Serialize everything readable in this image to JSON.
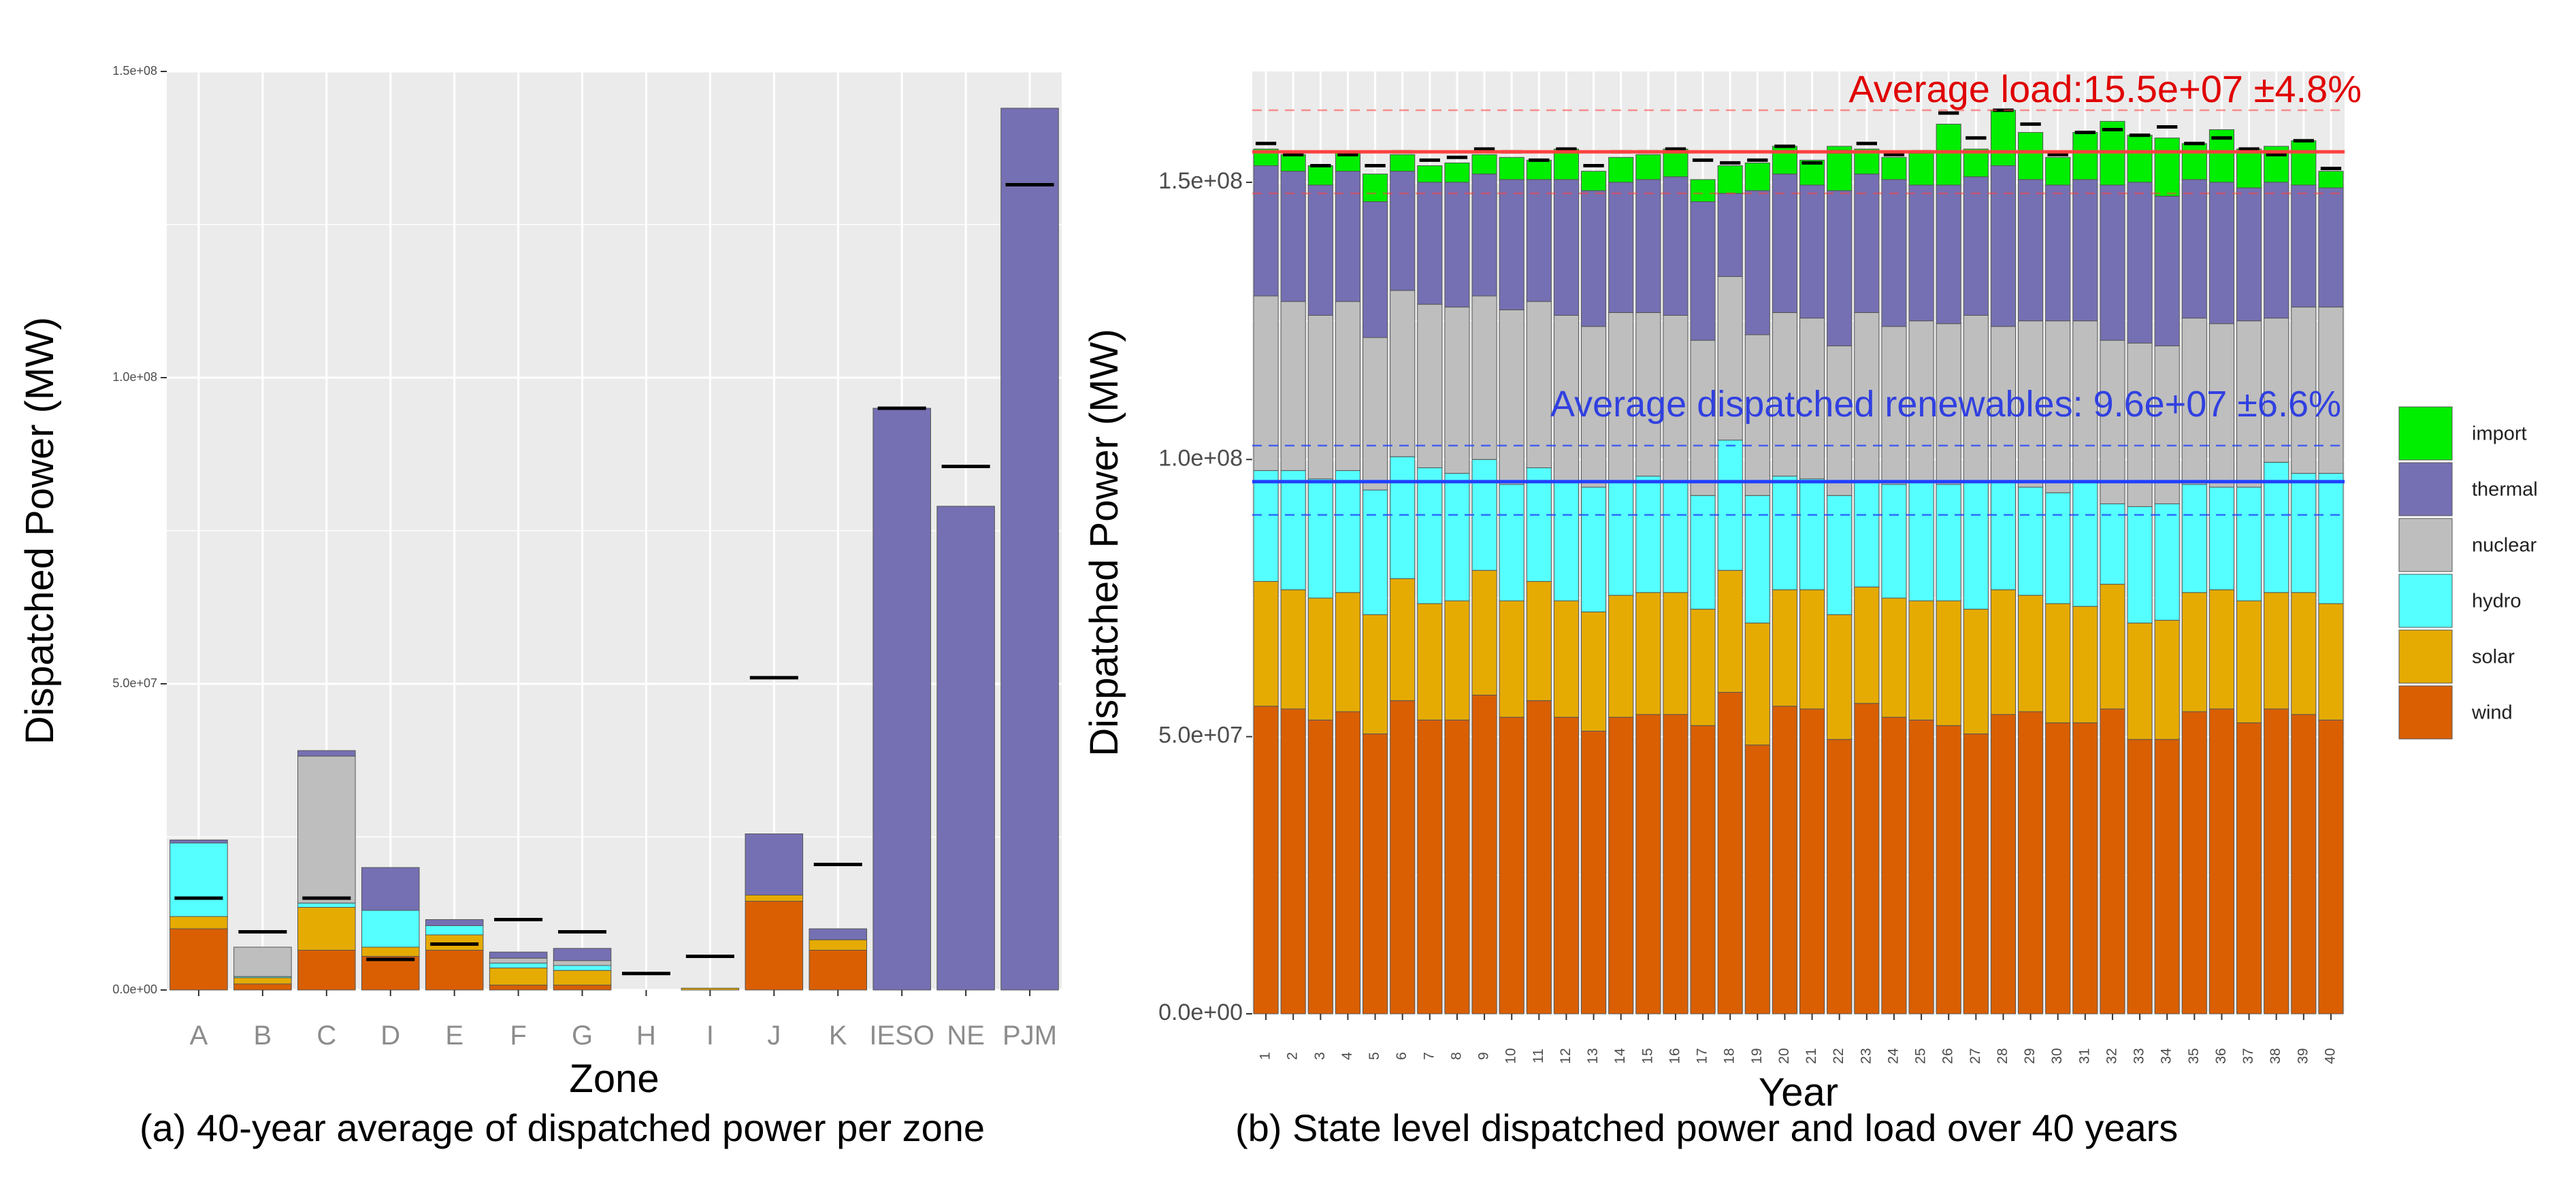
{
  "colors": {
    "wind": "#D95F02",
    "solar": "#E6AB02",
    "hydro": "#55FFFF",
    "nuclear": "#BEBEBE",
    "thermal": "#7570B3",
    "import": "#00EE00",
    "panel_bg": "#EBEBEB",
    "grid": "#FFFFFF",
    "load_line": "#FF4040",
    "renew_line": "#2040FF",
    "renew_text": "#3040E0",
    "load_text": "#E00000"
  },
  "chart_data": [
    {
      "type": "bar",
      "stacked": true,
      "caption": "(a) 40-year average of dispatched power per zone",
      "xlabel": "Zone",
      "ylabel": "Dispatched Power (MW)",
      "ylim": [
        0,
        150000000
      ],
      "yticks": [
        0,
        50000000,
        100000000,
        150000000
      ],
      "ytick_labels": [
        "0.0e+00",
        "5.0e+07",
        "1.0e+08",
        "1.5e+08"
      ],
      "grid": true,
      "categories": [
        "A",
        "B",
        "C",
        "D",
        "E",
        "F",
        "G",
        "H",
        "I",
        "J",
        "K",
        "IESO",
        "NE",
        "PJM"
      ],
      "series": [
        {
          "name": "wind",
          "values": [
            10000000,
            1000000,
            6500000,
            5500000,
            6500000,
            800000,
            800000,
            0,
            0,
            14500000,
            6500000,
            0,
            0,
            0
          ]
        },
        {
          "name": "solar",
          "values": [
            2000000,
            1000000,
            7000000,
            1500000,
            2500000,
            2800000,
            2400000,
            0,
            300000,
            1000000,
            1700000,
            0,
            0,
            0
          ]
        },
        {
          "name": "hydro",
          "values": [
            12000000,
            200000,
            700000,
            6000000,
            1500000,
            800000,
            800000,
            0,
            0,
            0,
            0,
            0,
            0,
            0
          ]
        },
        {
          "name": "nuclear",
          "values": [
            0,
            4800000,
            24000000,
            0,
            0,
            800000,
            800000,
            0,
            0,
            0,
            0,
            0,
            0,
            0
          ]
        },
        {
          "name": "thermal",
          "values": [
            500000,
            0,
            900000,
            7000000,
            1000000,
            1000000,
            2000000,
            0,
            0,
            10000000,
            1800000,
            95000000,
            79000000,
            144000000
          ]
        },
        {
          "name": "import",
          "values": [
            0,
            0,
            0,
            0,
            0,
            0,
            0,
            0,
            0,
            0,
            0,
            0,
            0,
            0
          ]
        }
      ],
      "load_marks": [
        15000000,
        9500000,
        15000000,
        5000000,
        7500000,
        11500000,
        9500000,
        2700000,
        5500000,
        51000000,
        20500000,
        95000000,
        85500000,
        131500000
      ]
    },
    {
      "type": "bar",
      "stacked": true,
      "caption": "(b) State level dispatched power and load over 40 years",
      "xlabel": "Year",
      "ylabel": "Dispatched Power (MW)",
      "ylim": [
        0,
        170000000
      ],
      "yticks": [
        0,
        50000000,
        100000000,
        150000000
      ],
      "ytick_labels": [
        "0.0e+00",
        "5.0e+07",
        "1.0e+08",
        "1.5e+08"
      ],
      "grid": true,
      "categories": [
        "1",
        "2",
        "3",
        "4",
        "5",
        "6",
        "7",
        "8",
        "9",
        "10",
        "11",
        "12",
        "13",
        "14",
        "15",
        "16",
        "17",
        "18",
        "19",
        "20",
        "21",
        "22",
        "23",
        "24",
        "25",
        "26",
        "27",
        "28",
        "29",
        "30",
        "31",
        "32",
        "33",
        "34",
        "35",
        "36",
        "37",
        "38",
        "39",
        "40"
      ],
      "series": [
        {
          "name": "wind",
          "values": [
            55500000,
            55000000,
            53000000,
            54500000,
            50500000,
            56500000,
            53000000,
            53000000,
            57500000,
            53500000,
            56500000,
            53500000,
            51000000,
            53500000,
            54000000,
            54000000,
            52000000,
            58000000,
            48500000,
            55500000,
            55000000,
            49500000,
            56000000,
            53500000,
            53000000,
            52000000,
            50500000,
            54000000,
            54500000,
            52500000,
            52500000,
            55000000,
            49500000,
            49500000,
            54500000,
            55000000,
            52500000,
            55000000,
            54000000,
            53000000
          ]
        },
        {
          "name": "solar",
          "values": [
            22500000,
            21500000,
            22000000,
            21500000,
            21500000,
            22000000,
            21000000,
            21500000,
            22500000,
            21000000,
            21500000,
            21000000,
            21500000,
            22000000,
            22000000,
            22000000,
            21000000,
            22000000,
            22000000,
            21000000,
            21500000,
            22500000,
            21000000,
            21500000,
            21500000,
            22500000,
            22500000,
            22500000,
            21000000,
            21500000,
            21000000,
            22500000,
            21000000,
            21500000,
            21500000,
            21500000,
            22000000,
            21000000,
            22000000,
            21000000
          ]
        },
        {
          "name": "hydro",
          "values": [
            20000000,
            21500000,
            21500000,
            22000000,
            22500000,
            22000000,
            24500000,
            23000000,
            20000000,
            21000000,
            20500000,
            21500000,
            22500000,
            20500000,
            21000000,
            20000000,
            20500000,
            23500000,
            23000000,
            20500000,
            20000000,
            21500000,
            19000000,
            20500000,
            21500000,
            21000000,
            23000000,
            19500000,
            19500000,
            20000000,
            22500000,
            14500000,
            21000000,
            21000000,
            19500000,
            18500000,
            20500000,
            23500000,
            21500000,
            23500000
          ]
        },
        {
          "name": "nuclear",
          "values": [
            31500000,
            30500000,
            29500000,
            30500000,
            27500000,
            30000000,
            29500000,
            30000000,
            29500000,
            31500000,
            30000000,
            30000000,
            29000000,
            30500000,
            29500000,
            30000000,
            28000000,
            29500000,
            29000000,
            29500000,
            29000000,
            27000000,
            30500000,
            28500000,
            29000000,
            29000000,
            30000000,
            28000000,
            30000000,
            31000000,
            29000000,
            29500000,
            29500000,
            28500000,
            30000000,
            29500000,
            30000000,
            26000000,
            30000000,
            30000000
          ]
        },
        {
          "name": "thermal",
          "values": [
            23500000,
            23500000,
            23500000,
            23500000,
            24500000,
            21500000,
            22000000,
            22500000,
            22000000,
            23500000,
            22000000,
            24500000,
            24500000,
            23500000,
            24000000,
            25000000,
            25000000,
            15000000,
            26000000,
            25000000,
            24000000,
            28000000,
            25000000,
            26500000,
            24500000,
            25000000,
            25000000,
            29000000,
            25500000,
            24500000,
            25500000,
            28000000,
            29000000,
            27000000,
            25000000,
            25500000,
            24000000,
            24500000,
            22000000,
            21500000
          ]
        },
        {
          "name": "import",
          "values": [
            3000000,
            3000000,
            3500000,
            3500000,
            5000000,
            3000000,
            3000000,
            3500000,
            3500000,
            4000000,
            3500000,
            5500000,
            3500000,
            4500000,
            4500000,
            5000000,
            4000000,
            5000000,
            5000000,
            5000000,
            4500000,
            8000000,
            4500000,
            4000000,
            6000000,
            11000000,
            5000000,
            10000000,
            8500000,
            5000000,
            8500000,
            11500000,
            8500000,
            10500000,
            6500000,
            9500000,
            7000000,
            6500000,
            8000000,
            3000000
          ]
        }
      ],
      "load_marks": [
        157000000,
        155000000,
        153000000,
        155000000,
        153000000,
        155500000,
        154000000,
        154500000,
        156000000,
        155500000,
        154000000,
        156000000,
        153000000,
        155500000,
        155500000,
        156000000,
        154000000,
        153500000,
        154000000,
        156500000,
        153500000,
        155500000,
        157000000,
        155000000,
        155500000,
        162500000,
        158000000,
        163000000,
        160500000,
        155000000,
        159000000,
        159500000,
        158500000,
        160000000,
        157000000,
        158000000,
        156000000,
        155000000,
        157500000,
        152500000
      ],
      "reference_lines": [
        {
          "name": "average-load",
          "value": 155500000,
          "band": [
            148000000,
            163000000
          ]
        },
        {
          "name": "average-renewables",
          "value": 96000000,
          "band": [
            90000000,
            102500000
          ]
        }
      ],
      "annotations": [
        {
          "name": "load-annotation",
          "text": "Average load:15.5e+07 ±4.8%"
        },
        {
          "name": "renewables-annotation",
          "text": "Average dispatched renewables: 9.6e+07 ±6.6%"
        }
      ],
      "legend": {
        "position": "right",
        "entries": [
          "import",
          "thermal",
          "nuclear",
          "hydro",
          "solar",
          "wind"
        ]
      }
    }
  ]
}
